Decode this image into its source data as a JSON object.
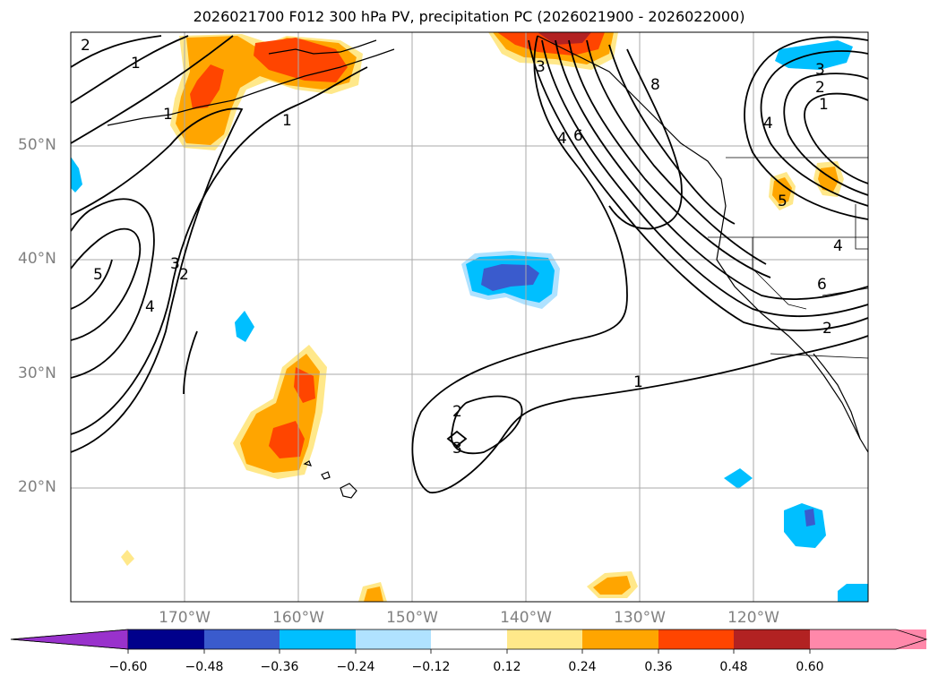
{
  "title": "2026021700 F012 300 hPa PV, precipitation PC (2026021900 - 2026022000)",
  "latitude_labels": [
    "50°N",
    "40°N",
    "30°N",
    "20°N"
  ],
  "longitude_labels": [
    "170°W",
    "160°W",
    "150°W",
    "140°W",
    "130°W",
    "120°W"
  ],
  "colorbar": {
    "ticks": [
      "−0.60",
      "−0.48",
      "−0.36",
      "−0.24",
      "−0.12",
      "0.12",
      "0.24",
      "0.36",
      "0.48",
      "0.60"
    ],
    "colors": [
      "#9932cc",
      "#00008b",
      "#3a5bcd",
      "#00bfff",
      "#b0e2ff",
      "#ffffff",
      "#ffe88a",
      "#ffa500",
      "#ff4500",
      "#b22222",
      "#ff88aa"
    ]
  },
  "pv_contour_labels": [
    "1",
    "2",
    "3",
    "4",
    "5",
    "6",
    "8"
  ],
  "precip_colors": {
    "pos_weak": "#ffe88a",
    "pos_mid": "#ffa500",
    "pos_strong": "#ff4500",
    "neg_weak": "#b0e2ff",
    "neg_mid": "#00bfff",
    "neg_strong": "#3a5bcd"
  }
}
